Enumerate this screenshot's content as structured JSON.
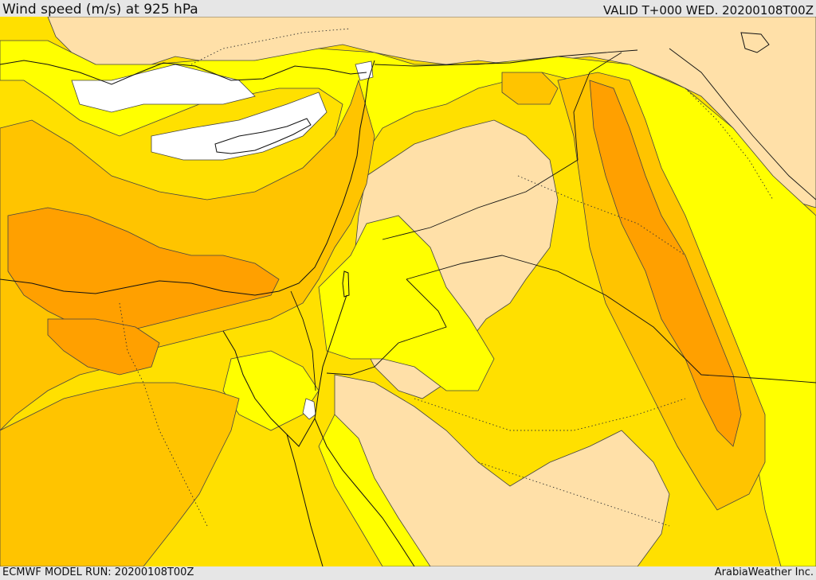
{
  "header": {
    "title": "Wind speed (m/s) at 925 hPa",
    "valid": "VALID T+000 WED. 20200108T00Z"
  },
  "footer": {
    "model_run": "ECMWF MODEL RUN: 20200108T00Z",
    "credit": "ArabiaWeather Inc."
  },
  "colors": {
    "band_calm": "#ffffff",
    "band_light": "#ffe0a8",
    "band_moderate_low": "#ffff00",
    "band_moderate": "#ffe000",
    "band_strong": "#ffc400",
    "band_stronger": "#ffa000"
  }
}
